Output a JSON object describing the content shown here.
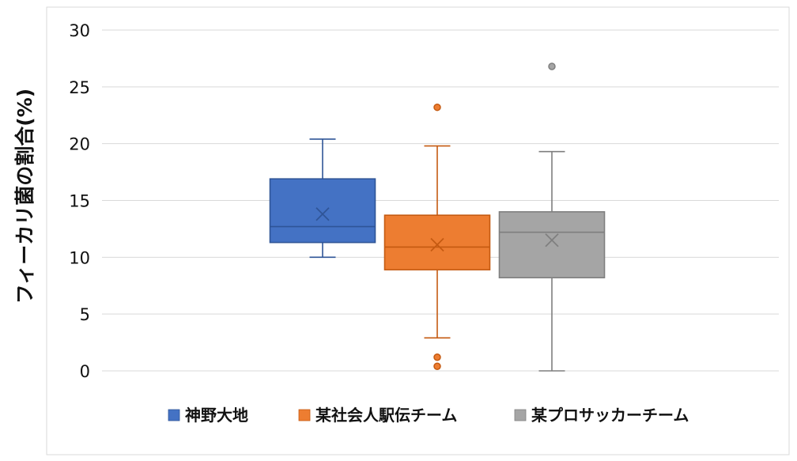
{
  "chart_data": {
    "type": "box",
    "title": "",
    "xlabel": "",
    "ylabel": "フィーカリ菌の割合(%)",
    "ylim": [
      0,
      30
    ],
    "yticks": [
      0,
      5,
      10,
      15,
      20,
      25,
      30
    ],
    "ytick_labels": [
      "0",
      "5",
      "10",
      "15",
      "20",
      "25",
      "30"
    ],
    "grid": true,
    "legend_position": "bottom",
    "series": [
      {
        "name": "神野大地",
        "color": "#4472C4",
        "stroke": "#2F5597",
        "whisker_low": 10.0,
        "q1": 11.3,
        "median": 12.7,
        "q3": 16.9,
        "whisker_high": 20.4,
        "mean": 13.8,
        "outliers": []
      },
      {
        "name": "某社会人駅伝チーム",
        "color": "#ED7D31",
        "stroke": "#C55A11",
        "whisker_low": 2.9,
        "q1": 8.9,
        "median": 10.9,
        "q3": 13.7,
        "whisker_high": 19.8,
        "mean": 11.1,
        "outliers": [
          23.2,
          1.2,
          0.4
        ]
      },
      {
        "name": "某プロサッカーチーム",
        "color": "#A5A5A5",
        "stroke": "#7F7F7F",
        "whisker_low": 0.0,
        "q1": 8.2,
        "median": 12.2,
        "q3": 14.0,
        "whisker_high": 19.3,
        "mean": 11.5,
        "outliers": [
          26.8
        ]
      }
    ]
  }
}
